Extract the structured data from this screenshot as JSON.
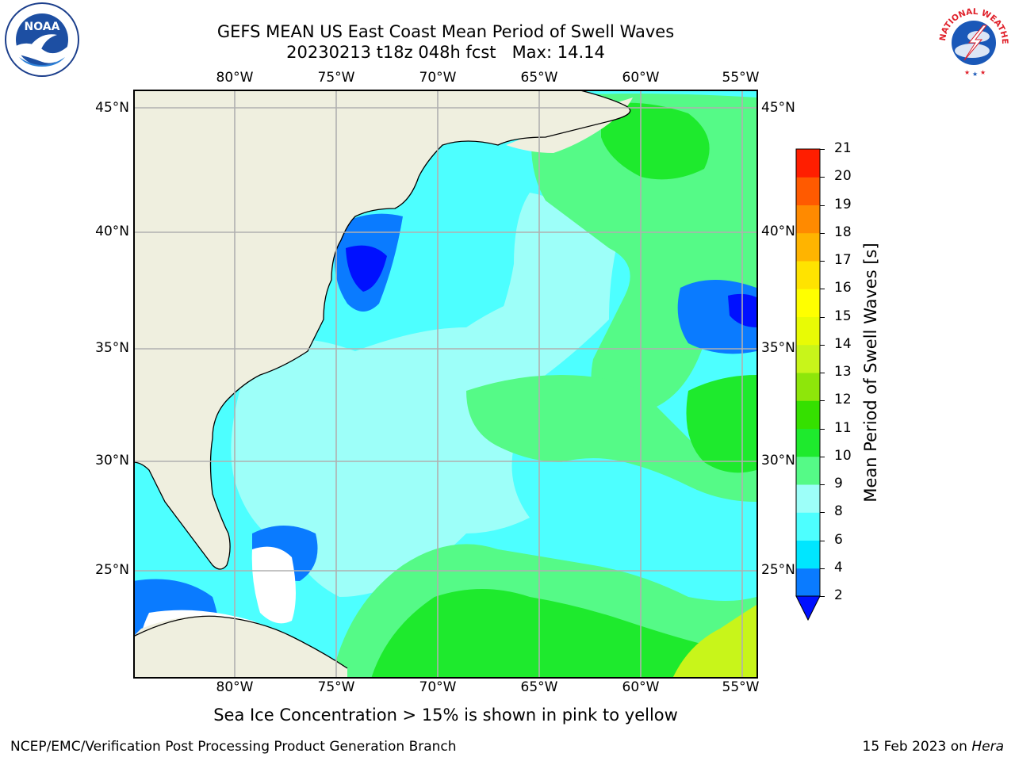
{
  "title": {
    "line1": "GEFS MEAN US East Coast Mean Period of Swell Waves",
    "line2": "20230213 t18z 048h fcst   Max: 14.14"
  },
  "logos": {
    "left": {
      "name": "noaa-logo",
      "text": "NOAA"
    },
    "right": {
      "name": "nws-logo",
      "text": "NATIONAL WEATHER SERVICE"
    }
  },
  "map": {
    "lon_labels": [
      "80°W",
      "75°W",
      "70°W",
      "65°W",
      "60°W",
      "55°W"
    ],
    "lat_labels": [
      "45°N",
      "40°N",
      "35°N",
      "30°N",
      "25°N"
    ],
    "colors": {
      "land": "#efefdf",
      "gridline": "#b0b0b0",
      "coast": "#000000",
      "missing": "#ffffff"
    }
  },
  "colorbar": {
    "label": "Mean Period of Swell Waves [s]",
    "ticks": [
      "2",
      "4",
      "6",
      "8",
      "9",
      "10",
      "11",
      "12",
      "13",
      "14",
      "15",
      "16",
      "17",
      "18",
      "19",
      "20",
      "21"
    ],
    "colors": [
      "#0a7bff",
      "#00e6ff",
      "#4dffff",
      "#9dfff9",
      "#55fa87",
      "#1eea2d",
      "#35e000",
      "#8ee60a",
      "#c8f51a",
      "#e8fb05",
      "#ffff00",
      "#ffe300",
      "#ffb400",
      "#ff8a00",
      "#ff5a00",
      "#ff1e00"
    ],
    "extend_color": "#0010ff"
  },
  "caption": "Sea Ice Concentration > 15% is shown in pink to yellow",
  "footer": {
    "left": "NCEP/EMC/Verification Post Processing Product Generation Branch",
    "right_prefix": "15 Feb 2023 on ",
    "right_machine": "Hera"
  }
}
